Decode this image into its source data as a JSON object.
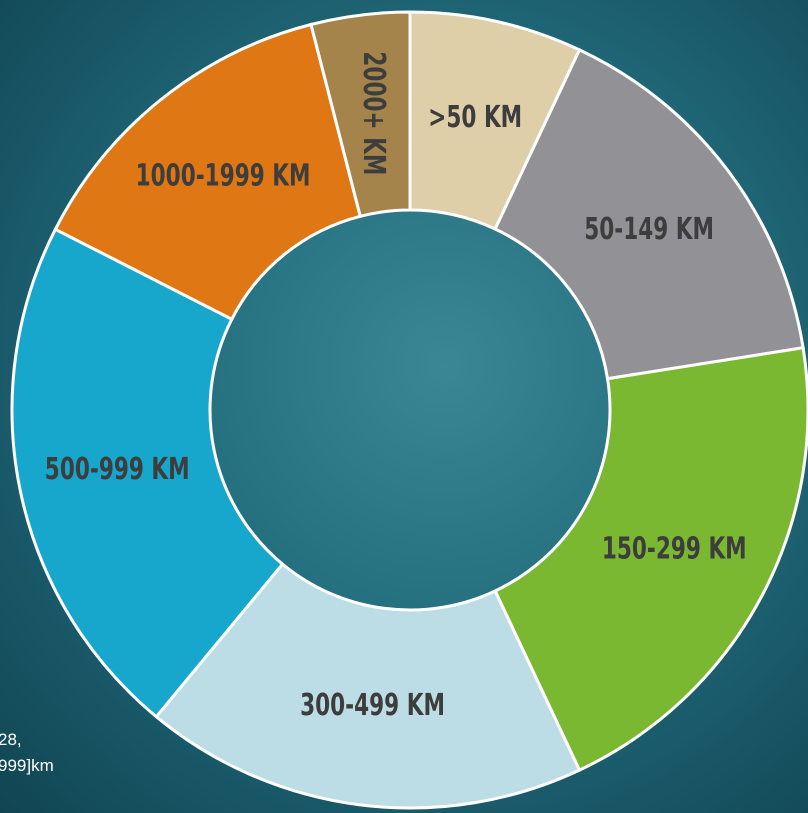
{
  "chart_data": {
    "type": "donut",
    "categories": [
      ">50 KM",
      "50-149 KM",
      "150-299 KM",
      "300-499 KM",
      "500-999 KM",
      "1000-1999 KM",
      "2000+ KM"
    ],
    "values": [
      7,
      15.5,
      20.5,
      18,
      21.5,
      13.5,
      4
    ],
    "colors": [
      "#dfcfa8",
      "#929296",
      "#7ab832",
      "#bcdde6",
      "#17a6cc",
      "#de7714",
      "#a4844a"
    ],
    "footnote": [
      "28,",
      "999]km"
    ]
  }
}
